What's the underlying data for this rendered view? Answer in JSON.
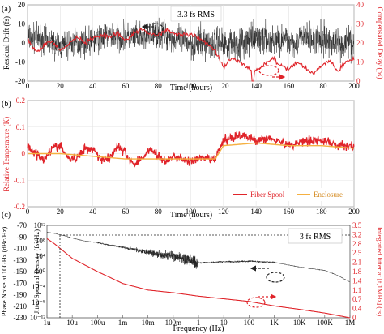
{
  "colors": {
    "black": "#222222",
    "red": "#e0242a",
    "orange": "#f5b041",
    "box": "#cccccc"
  },
  "chart_data": [
    {
      "panel": "(a)",
      "type": "line",
      "annotation": "3.3 fs RMS",
      "xlabel": "Time (hours)",
      "ylabel": "Residual Drift (fs)",
      "ylabel_right": "Compensated Delay (ps)",
      "xlim": [
        0,
        200
      ],
      "ylim": [
        -20,
        20
      ],
      "ylim_right": [
        0,
        40
      ],
      "xticks": [
        "0",
        "20",
        "40",
        "60",
        "80",
        "100",
        "120",
        "140",
        "160",
        "180",
        "200"
      ],
      "yticks": [
        "-20",
        "-10",
        "0",
        "10",
        "20"
      ],
      "yticks_right": [
        "0",
        "10",
        "20",
        "30",
        "40"
      ],
      "grid": true,
      "series": [
        {
          "axis": "left",
          "color": "black",
          "x": [
            0,
            10,
            20,
            30,
            40,
            50,
            60,
            70,
            80,
            90,
            100,
            110,
            120,
            130,
            140,
            150,
            160,
            170,
            180,
            190,
            200
          ],
          "y": [
            3,
            2,
            -2,
            0,
            1,
            4,
            3,
            3,
            5,
            2,
            0,
            0,
            0,
            0,
            2,
            1,
            1,
            2,
            1,
            0,
            1
          ],
          "noise": 7
        },
        {
          "axis": "right",
          "color": "red",
          "x": [
            0,
            3,
            6,
            10,
            15,
            20,
            25,
            30,
            35,
            40,
            45,
            50,
            55,
            60,
            65,
            70,
            75,
            80,
            85,
            90,
            95,
            100,
            105,
            110,
            115,
            120,
            125,
            130,
            135,
            140,
            145,
            150,
            155,
            160,
            165,
            170,
            175,
            180,
            185,
            190,
            195,
            200
          ],
          "y": [
            22,
            18,
            15,
            19,
            21,
            16,
            19,
            23,
            20,
            22,
            24,
            23,
            25,
            21,
            25,
            27,
            25,
            24,
            27,
            25,
            24,
            25,
            22,
            20,
            16,
            7,
            12,
            10,
            7,
            5,
            9,
            12,
            8,
            6,
            10,
            7,
            4,
            8,
            11,
            5,
            10,
            12
          ]
        }
      ]
    },
    {
      "panel": "(b)",
      "type": "line",
      "xlabel": "Time (hours)",
      "ylabel": "Relative Temperature (K)",
      "xlim": [
        0,
        200
      ],
      "ylim": [
        -0.2,
        0.2
      ],
      "xticks": [
        "0",
        "20",
        "40",
        "60",
        "80",
        "100",
        "120",
        "140",
        "160",
        "180",
        "200"
      ],
      "yticks": [
        "-0.2",
        "-0.1",
        "0",
        "0.1",
        "0.2"
      ],
      "legend": "bottom-right",
      "series": [
        {
          "name": "Fiber Spool",
          "color": "red",
          "x": [
            0,
            5,
            10,
            15,
            20,
            25,
            30,
            35,
            40,
            45,
            50,
            55,
            60,
            65,
            70,
            75,
            80,
            85,
            90,
            95,
            100,
            105,
            110,
            115,
            120,
            130,
            140,
            150,
            160,
            170,
            180,
            190,
            200
          ],
          "y": [
            0.03,
            0.0,
            -0.02,
            0.02,
            0.03,
            -0.02,
            -0.02,
            0.02,
            0.02,
            -0.02,
            -0.02,
            0.03,
            0.0,
            -0.04,
            -0.02,
            0.02,
            -0.01,
            -0.03,
            -0.01,
            -0.02,
            -0.03,
            -0.02,
            -0.02,
            -0.02,
            0.05,
            0.07,
            0.05,
            0.06,
            0.03,
            0.05,
            0.05,
            0.03,
            0.03
          ],
          "noise": 0.015
        },
        {
          "name": "Enclosure",
          "color": "orange",
          "x": [
            0,
            20,
            40,
            60,
            80,
            100,
            115,
            120,
            140,
            160,
            180,
            200
          ],
          "y": [
            0.0,
            0.0,
            -0.01,
            -0.02,
            -0.02,
            -0.02,
            -0.02,
            0.03,
            0.04,
            0.03,
            0.03,
            0.02
          ]
        }
      ]
    },
    {
      "panel": "(c)",
      "type": "line",
      "annotation": "3 fs RMS",
      "xlabel": "Frequency (Hz)",
      "ylabel": "Phase Noise at 10GHz (dBc/Hz)",
      "ylabel_inner": "Jitter Spectral Density (fs²/Hz)",
      "ylabel_right": "Integrated Jitter at [f,1MHz] (fs)",
      "xscale": "log",
      "xlim": [
        1e-06,
        1000000
      ],
      "xticks": [
        "1u",
        "10u",
        "100u",
        "1m",
        "10m",
        "100m",
        "1",
        "10",
        "100",
        "1K",
        "10K",
        "100K",
        "1M"
      ],
      "yticks_outer": [
        "-70",
        "-90",
        "-110",
        "-130",
        "-150",
        "-170",
        "-190",
        "-210",
        "-230"
      ],
      "yticks_inner": [
        "10¹²",
        "10⁸",
        "10⁴",
        "10⁰",
        "10⁻⁴",
        "10⁻⁸",
        "10⁻¹²"
      ],
      "yticks_right": [
        "3.5",
        "3.2",
        "2.8",
        "2.5",
        "2.1",
        "1.8",
        "1.4",
        "1.1",
        "0.7",
        "0.4",
        "0"
      ],
      "ylim_right": [
        0,
        3.5
      ],
      "series": [
        {
          "axis": "left",
          "color": "black",
          "x": [
            1e-06,
            2e-06,
            5e-06,
            1e-05,
            3e-05,
            0.0001,
            0.0003,
            0.001,
            0.003,
            0.01,
            0.03,
            0.1,
            0.3,
            1,
            3,
            10,
            30,
            100,
            300,
            1000,
            3000,
            10000,
            30000,
            100000,
            300000,
            1000000
          ],
          "y": [
            -82,
            -84,
            -88,
            -92,
            -97,
            -100,
            -104,
            -108,
            -112,
            -116,
            -120,
            -124,
            -128,
            -135,
            -134,
            -133,
            -133,
            -132,
            -133,
            -134,
            -138,
            -142,
            -145,
            -148,
            -156,
            -168
          ]
        },
        {
          "axis": "right",
          "color": "red",
          "x": [
            1e-06,
            2e-06,
            1e-05,
            0.0001,
            0.001,
            0.01,
            0.1,
            1,
            10,
            100,
            1000,
            10000,
            100000,
            1000000
          ],
          "y": [
            3.0,
            2.8,
            2.25,
            1.75,
            1.3,
            1.05,
            0.95,
            0.82,
            0.72,
            0.62,
            0.45,
            0.32,
            0.18,
            0.0
          ]
        }
      ]
    }
  ]
}
